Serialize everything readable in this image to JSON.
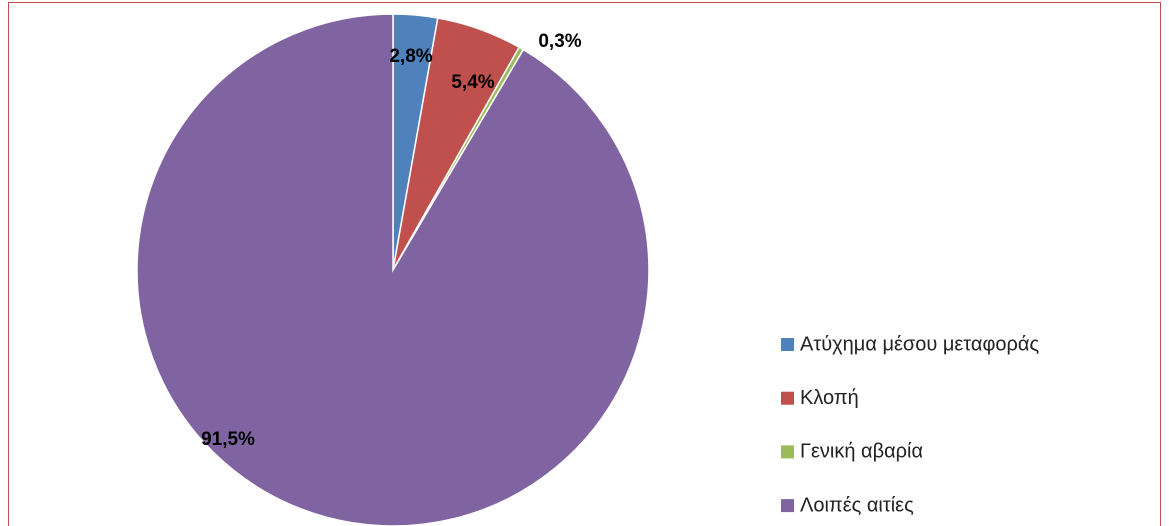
{
  "chart_data": {
    "type": "pie",
    "categories": [
      "Ατύχημα μέσου μεταφοράς",
      "Κλοπή",
      "Γενική αβαρία",
      "Λοιπές αιτίες"
    ],
    "values": [
      2.8,
      5.4,
      0.3,
      91.5
    ],
    "value_labels": [
      "2,8%",
      "5,4%",
      "0,3%",
      "91,5%"
    ],
    "colors": [
      "#4f81bd",
      "#c0504d",
      "#9bbb59",
      "#8064a2"
    ],
    "legend": "right"
  }
}
